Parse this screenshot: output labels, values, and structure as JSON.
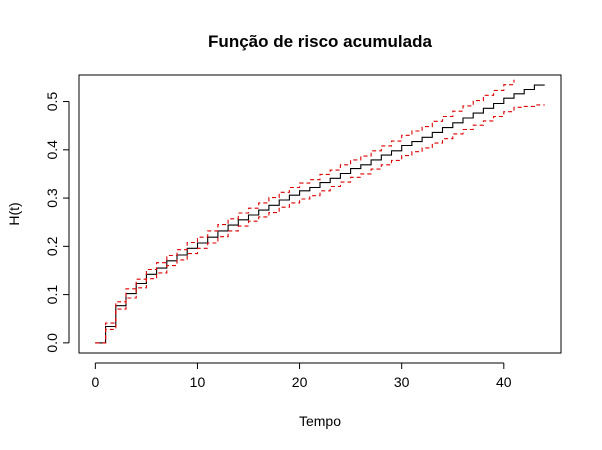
{
  "chart_data": {
    "type": "line",
    "title": "Função de risco acumulada",
    "xlabel": "Tempo",
    "ylabel": "H(t)",
    "xlim": [
      -1.6,
      45.6
    ],
    "ylim": [
      -0.021,
      0.555
    ],
    "x_ticks": [
      0,
      10,
      20,
      30,
      40
    ],
    "y_ticks": [
      0.0,
      0.1,
      0.2,
      0.3,
      0.4,
      0.5
    ],
    "x_tick_labels": [
      "0",
      "10",
      "20",
      "30",
      "40"
    ],
    "y_tick_labels": [
      "0.0",
      "0.1",
      "0.2",
      "0.3",
      "0.4",
      "0.5"
    ],
    "grid": false,
    "legend": "none",
    "step": true,
    "colors": {
      "estimate": "#000000",
      "confidence": "#dd0000"
    },
    "series": [
      {
        "line_style": "solid",
        "x": [
          0,
          1,
          2,
          3,
          4,
          5,
          6,
          7,
          8,
          9,
          10,
          11,
          12,
          13,
          14,
          15,
          16,
          17,
          18,
          19,
          20,
          21,
          22,
          23,
          24,
          25,
          26,
          27,
          28,
          29,
          30,
          31,
          32,
          33,
          34,
          35,
          36,
          37,
          38,
          39,
          40,
          41,
          42,
          43,
          44
        ],
        "y": [
          0.0,
          0.034,
          0.077,
          0.102,
          0.123,
          0.142,
          0.155,
          0.17,
          0.182,
          0.196,
          0.207,
          0.219,
          0.232,
          0.244,
          0.255,
          0.265,
          0.275,
          0.285,
          0.296,
          0.306,
          0.315,
          0.322,
          0.332,
          0.341,
          0.351,
          0.361,
          0.369,
          0.379,
          0.389,
          0.398,
          0.409,
          0.417,
          0.426,
          0.436,
          0.446,
          0.456,
          0.466,
          0.476,
          0.486,
          0.496,
          0.507,
          0.516,
          0.525,
          0.534,
          0.534
        ]
      },
      {
        "line_style": "dashed",
        "x": [
          0,
          1,
          2,
          3,
          4,
          5,
          6,
          7,
          8,
          9,
          10,
          11,
          12,
          13,
          14,
          15,
          16,
          17,
          18,
          19,
          20,
          21,
          22,
          23,
          24,
          25,
          26,
          27,
          28,
          29,
          30,
          31,
          32,
          33,
          34,
          35,
          36,
          37,
          38,
          39,
          40,
          41
        ],
        "y": [
          0.0,
          0.041,
          0.085,
          0.112,
          0.132,
          0.152,
          0.166,
          0.181,
          0.193,
          0.208,
          0.219,
          0.232,
          0.245,
          0.257,
          0.269,
          0.279,
          0.29,
          0.301,
          0.312,
          0.322,
          0.331,
          0.338,
          0.349,
          0.358,
          0.369,
          0.379,
          0.387,
          0.398,
          0.408,
          0.418,
          0.43,
          0.439,
          0.448,
          0.459,
          0.469,
          0.48,
          0.491,
          0.502,
          0.513,
          0.523,
          0.535,
          0.545
        ]
      },
      {
        "line_style": "dashed",
        "x": [
          0,
          1,
          2,
          3,
          4,
          5,
          6,
          7,
          8,
          9,
          10,
          11,
          12,
          13,
          14,
          15,
          16,
          17,
          18,
          19,
          20,
          21,
          22,
          23,
          24,
          25,
          26,
          27,
          28,
          29,
          30,
          31,
          32,
          33,
          34,
          35,
          36,
          37,
          38,
          39,
          40,
          41,
          42,
          43,
          44
        ],
        "y": [
          0.0,
          0.028,
          0.07,
          0.093,
          0.114,
          0.133,
          0.145,
          0.16,
          0.172,
          0.185,
          0.196,
          0.207,
          0.22,
          0.232,
          0.242,
          0.252,
          0.261,
          0.27,
          0.281,
          0.29,
          0.298,
          0.305,
          0.315,
          0.324,
          0.333,
          0.343,
          0.35,
          0.36,
          0.369,
          0.378,
          0.388,
          0.396,
          0.404,
          0.414,
          0.423,
          0.433,
          0.442,
          0.451,
          0.46,
          0.469,
          0.479,
          0.488,
          0.49,
          0.493,
          0.493
        ]
      }
    ]
  }
}
